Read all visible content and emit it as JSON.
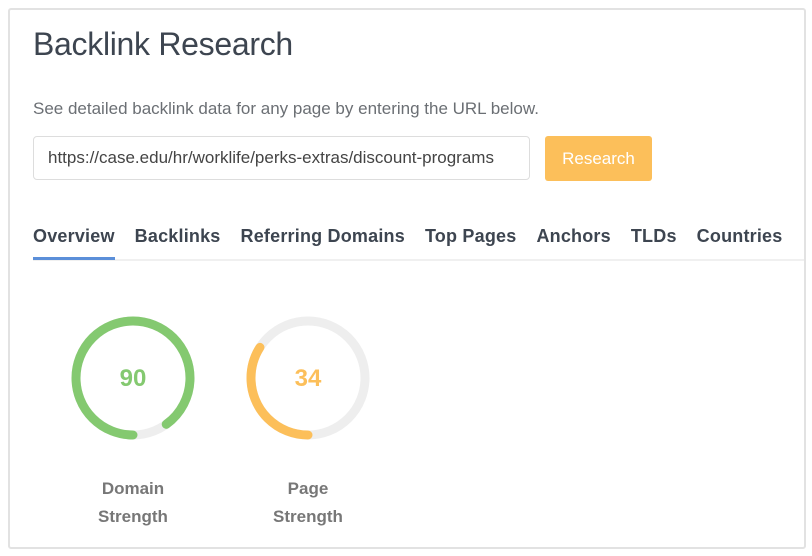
{
  "header": {
    "title": "Backlink Research",
    "subtitle": "See detailed backlink data for any page by entering the URL below."
  },
  "search": {
    "value": "https://case.edu/hr/worklife/perks-extras/discount-programs",
    "button_label": "Research"
  },
  "tabs": [
    {
      "label": "Overview",
      "active": true
    },
    {
      "label": "Backlinks"
    },
    {
      "label": "Referring Domains"
    },
    {
      "label": "Top Pages"
    },
    {
      "label": "Anchors"
    },
    {
      "label": "TLDs"
    },
    {
      "label": "Countries"
    }
  ],
  "gauges": [
    {
      "value": 90,
      "max": 100,
      "label_line1": "Domain",
      "label_line2": "Strength",
      "color": "#84c970"
    },
    {
      "value": 34,
      "max": 100,
      "label_line1": "Page",
      "label_line2": "Strength",
      "color": "#fcbf5a"
    }
  ],
  "colors": {
    "accent": "#5b8fd9",
    "button": "#fcbf5a",
    "track": "#eeeeee"
  }
}
